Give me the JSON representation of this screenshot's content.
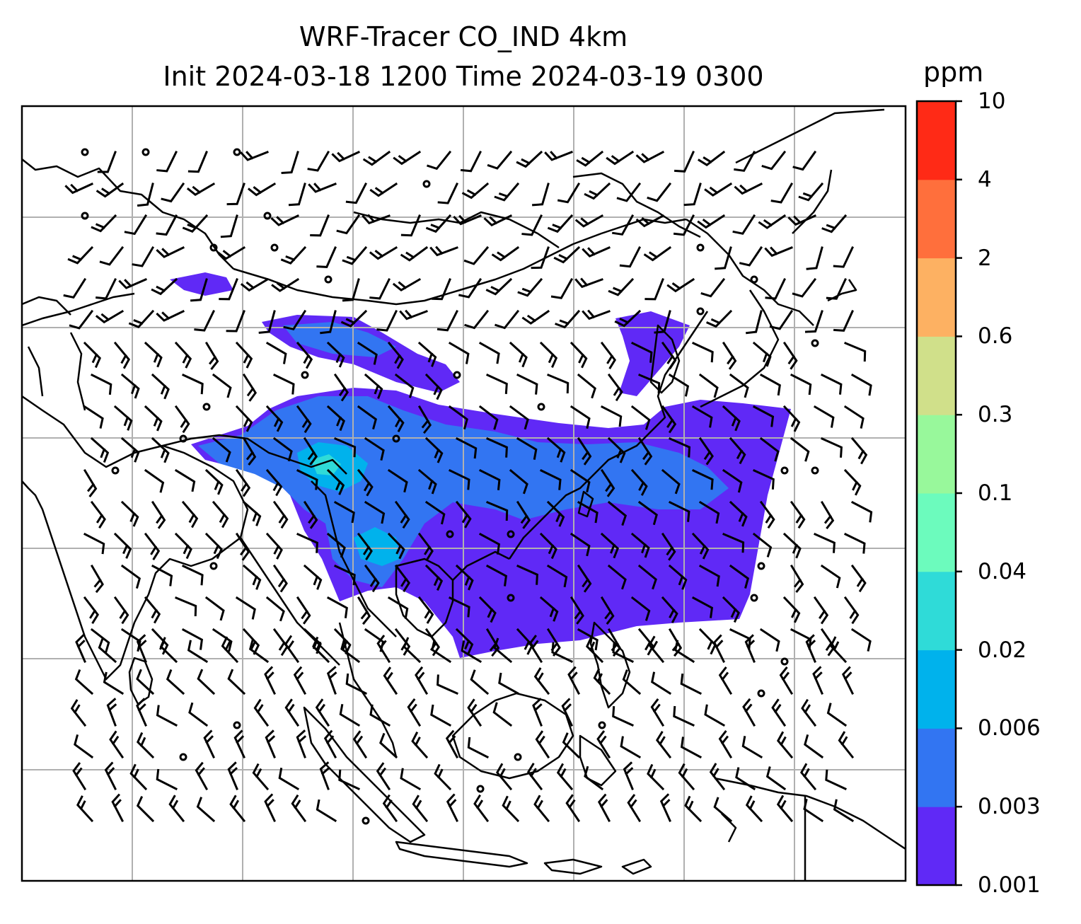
{
  "title": {
    "line1": "WRF-Tracer CO_IND 4km",
    "line2": "Init 2024-03-18 1200 Time 2024-03-19 0300"
  },
  "colorbar": {
    "unit": "ppm",
    "levels": [
      "0.001",
      "0.003",
      "0.006",
      "0.02",
      "0.04",
      "0.1",
      "0.3",
      "0.6",
      "2",
      "4",
      "10"
    ],
    "colors": [
      "#6029f6",
      "#3275f2",
      "#00b2ec",
      "#2fdbd8",
      "#6cfbbd",
      "#98f89b",
      "#d0e08a",
      "#fdb162",
      "#ff6f3c",
      "#ff2a16"
    ]
  },
  "map": {
    "grid": "on",
    "coastline_color": "#000000",
    "grid_color": "#b0b0b0",
    "wind_barbs": "on"
  }
}
